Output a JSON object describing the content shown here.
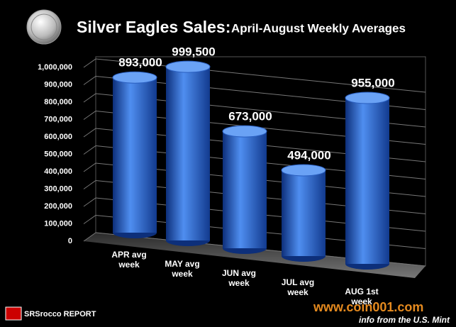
{
  "chart_data": {
    "type": "bar",
    "title": "Silver Eagles Sales:",
    "subtitle": "April-August Weekly Averages",
    "categories": [
      "APR avg week",
      "MAY avg week",
      "JUN avg week",
      "JUL avg week",
      "AUG 1st week"
    ],
    "values": [
      893000,
      999500,
      673000,
      494000,
      955000
    ],
    "value_labels": [
      "893,000",
      "999,500",
      "673,000",
      "494,000",
      "955,000"
    ],
    "color": "#2f6fd6",
    "ylim": [
      0,
      1000000
    ],
    "yticks": [
      0,
      {
        "value": 100000,
        "label": "100,000"
      },
      {
        "value": 200000,
        "label": "200,000"
      },
      {
        "value": 300000,
        "label": "300,000"
      },
      {
        "value": 400000,
        "label": "400,000"
      },
      {
        "value": 500000,
        "label": "500,000"
      },
      {
        "value": 600000,
        "label": "600,000"
      },
      {
        "value": 700000,
        "label": "700,000"
      },
      {
        "value": 800000,
        "label": "800,000"
      },
      {
        "value": 900000,
        "label": "900,000"
      },
      {
        "value": 1000000,
        "label": "1,000,000"
      }
    ],
    "grid": true,
    "footer": "info from the U.S. Mint",
    "logo": "SRSrocco REPORT",
    "watermark": "www.coin001.com"
  }
}
